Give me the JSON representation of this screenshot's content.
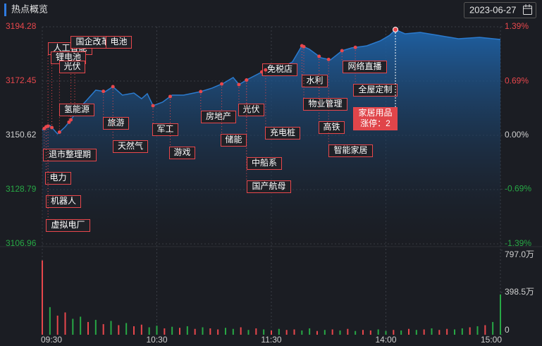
{
  "header": {
    "title": "热点概览",
    "date": "2023-06-27"
  },
  "chart_data": {
    "type": "line",
    "x": [
      0,
      2,
      4,
      8,
      12,
      15,
      18,
      24,
      28,
      33,
      37,
      42,
      48,
      52,
      55,
      58,
      63,
      68,
      74,
      83,
      89,
      95,
      100,
      103,
      108,
      113,
      120,
      126,
      131,
      136,
      140,
      146,
      151,
      157,
      162,
      170,
      177,
      182,
      185,
      190,
      198,
      207,
      218,
      229,
      240
    ],
    "series": [
      {
        "color": "#2b7bcf",
        "values": [
          3152.6,
          3154.02,
          3154.59,
          3151.19,
          3154.02,
          3156.86,
          3160.26,
          3165.36,
          3168.77,
          3168.2,
          3170.18,
          3166.78,
          3167.63,
          3165.36,
          3167.35,
          3162.53,
          3163.95,
          3166.78,
          3166.78,
          3168.2,
          3169.62,
          3171.6,
          3173.87,
          3171.03,
          3173.3,
          3175.29,
          3178.12,
          3178.12,
          3180.11,
          3186.63,
          3185.21,
          3181.81,
          3180.96,
          3184.64,
          3185.78,
          3186.63,
          3188.61,
          3190.88,
          3193.15,
          3191.45,
          3192.02,
          3190.88,
          3189.46,
          3190.03,
          3189.18
        ]
      }
    ],
    "xlim": [
      0,
      240
    ],
    "xticks": [
      {
        "value": 0,
        "label": "09:30"
      },
      {
        "value": 60,
        "label": "10:30"
      },
      {
        "value": 120,
        "label": "11:30"
      },
      {
        "value": 180,
        "label": "14:00"
      },
      {
        "value": 240,
        "label": "15:00"
      }
    ],
    "ylim": [
      3106.96,
      3194.28
    ],
    "yticks": [
      3194.28,
      3172.45,
      3150.62,
      3128.79,
      3106.96
    ],
    "y2lim": [
      -1.39,
      1.39
    ],
    "y2ticks": [
      {
        "value": 1.39,
        "label": "1.39%"
      },
      {
        "value": 0.69,
        "label": "0.69%"
      },
      {
        "value": 0,
        "label": "0.00%"
      },
      {
        "value": -0.69,
        "label": "-0.69%"
      },
      {
        "value": -1.39,
        "label": "-1.39%"
      }
    ],
    "tick_colors": [
      "#e8474c",
      "#e8474c",
      "#d0d0d0",
      "#27a845",
      "#27a845"
    ],
    "grid": true,
    "annotations": [
      {
        "text": "人工智能",
        "x": 3
      },
      {
        "text": "国企改革",
        "x": 15
      },
      {
        "text": "电池",
        "x": 17
      },
      {
        "text": "锂电池",
        "x": 5
      },
      {
        "text": "光伏",
        "x": 9
      },
      {
        "text": "氢能源",
        "x": 14
      },
      {
        "text": "退市整理期",
        "x": 1
      },
      {
        "text": "电力",
        "x": 2
      },
      {
        "text": "机器人",
        "x": 3
      },
      {
        "text": "虚拟电厂",
        "x": 3
      },
      {
        "text": "旅游",
        "x": 32
      },
      {
        "text": "天然气",
        "x": 37
      },
      {
        "text": "军工",
        "x": 58
      },
      {
        "text": "游戏",
        "x": 67
      },
      {
        "text": "房地产",
        "x": 83
      },
      {
        "text": "储能",
        "x": 94
      },
      {
        "text": "光伏",
        "x": 103
      },
      {
        "text": "中船系",
        "x": 107
      },
      {
        "text": "国产航母",
        "x": 107
      },
      {
        "text": "免税店",
        "x": 115
      },
      {
        "text": "充电桩",
        "x": 117
      },
      {
        "text": "水利",
        "x": 136
      },
      {
        "text": "物业管理",
        "x": 137
      },
      {
        "text": "高铁",
        "x": 145
      },
      {
        "text": "网络直播",
        "x": 157
      },
      {
        "text": "智能家居",
        "x": 150
      },
      {
        "text": "全屋定制",
        "x": 164
      },
      {
        "text": "家居用品",
        "subtext": "涨停：2",
        "x": 185
      }
    ],
    "volume": {
      "x": [
        0,
        4,
        8,
        12,
        16,
        20,
        24,
        28,
        32,
        36,
        40,
        44,
        48,
        52,
        56,
        60,
        64,
        68,
        72,
        76,
        80,
        84,
        88,
        92,
        96,
        100,
        104,
        108,
        112,
        116,
        120,
        124,
        128,
        132,
        136,
        140,
        144,
        148,
        152,
        156,
        160,
        164,
        168,
        172,
        176,
        180,
        184,
        188,
        192,
        196,
        200,
        204,
        208,
        212,
        216,
        220,
        224,
        228,
        232,
        236,
        240
      ],
      "values": [
        700,
        260,
        180,
        210,
        150,
        170,
        120,
        140,
        100,
        130,
        90,
        110,
        80,
        95,
        70,
        85,
        60,
        75,
        65,
        80,
        55,
        70,
        60,
        50,
        65,
        55,
        70,
        45,
        60,
        50,
        40,
        55,
        45,
        50,
        40,
        60,
        35,
        45,
        50,
        40,
        55,
        35,
        45,
        40,
        50,
        35,
        45,
        40,
        55,
        45,
        50,
        60,
        45,
        55,
        50,
        60,
        70,
        80,
        90,
        120,
        380
      ],
      "colors": [
        "#e8474c",
        "#27a845",
        "#e8474c",
        "#e8474c",
        "#27a845",
        "#27a845",
        "#e8474c",
        "#27a845",
        "#e8474c",
        "#27a845",
        "#e8474c",
        "#27a845",
        "#e8474c",
        "#e8474c",
        "#27a845",
        "#27a845",
        "#e8474c",
        "#27a845",
        "#e8474c",
        "#27a845",
        "#e8474c",
        "#27a845",
        "#e8474c",
        "#e8474c",
        "#27a845",
        "#27a845",
        "#e8474c",
        "#27a845",
        "#e8474c",
        "#27a845",
        "#e8474c",
        "#27a845",
        "#e8474c",
        "#e8474c",
        "#27a845",
        "#27a845",
        "#e8474c",
        "#27a845",
        "#e8474c",
        "#27a845",
        "#e8474c",
        "#27a845",
        "#e8474c",
        "#e8474c",
        "#27a845",
        "#27a845",
        "#e8474c",
        "#27a845",
        "#e8474c",
        "#27a845",
        "#e8474c",
        "#27a845",
        "#e8474c",
        "#e8474c",
        "#27a845",
        "#27a845",
        "#e8474c",
        "#27a845",
        "#e8474c",
        "#27a845",
        "#27a845"
      ],
      "ylim": [
        0,
        797
      ],
      "yticks": [
        {
          "value": 797,
          "label": "797.0万"
        },
        {
          "value": 398.5,
          "label": "398.5万"
        },
        0
      ]
    }
  }
}
